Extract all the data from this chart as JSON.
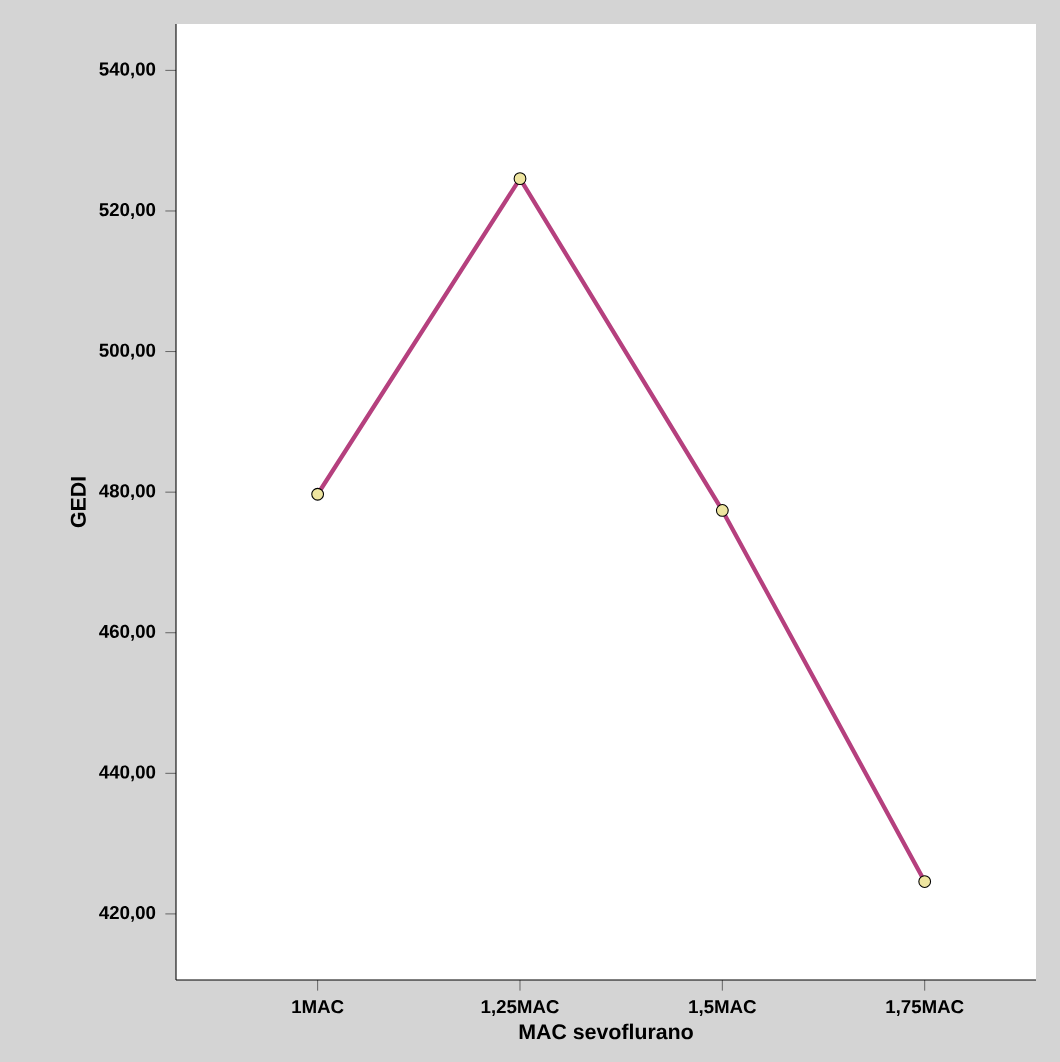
{
  "chart_data": {
    "type": "line",
    "xlabel": "MAC sevoflurano",
    "ylabel": "GEDI",
    "categories": [
      "1MAC",
      "1,25MAC",
      "1,5MAC",
      "1,75MAC"
    ],
    "values": [
      479.7,
      524.6,
      477.4,
      424.6
    ],
    "color": "#b5407e",
    "marker": "circle",
    "line_style": "solid",
    "ylim": [
      410.6,
      546.6
    ],
    "yticks": [
      {
        "value": 420,
        "label": "420,00"
      },
      {
        "value": 440,
        "label": "440,00"
      },
      {
        "value": 460,
        "label": "460,00"
      },
      {
        "value": 480,
        "label": "480,00"
      },
      {
        "value": 500,
        "label": "500,00"
      },
      {
        "value": 520,
        "label": "520,00"
      },
      {
        "value": 540,
        "label": "540,00"
      }
    ],
    "grid": false
  }
}
